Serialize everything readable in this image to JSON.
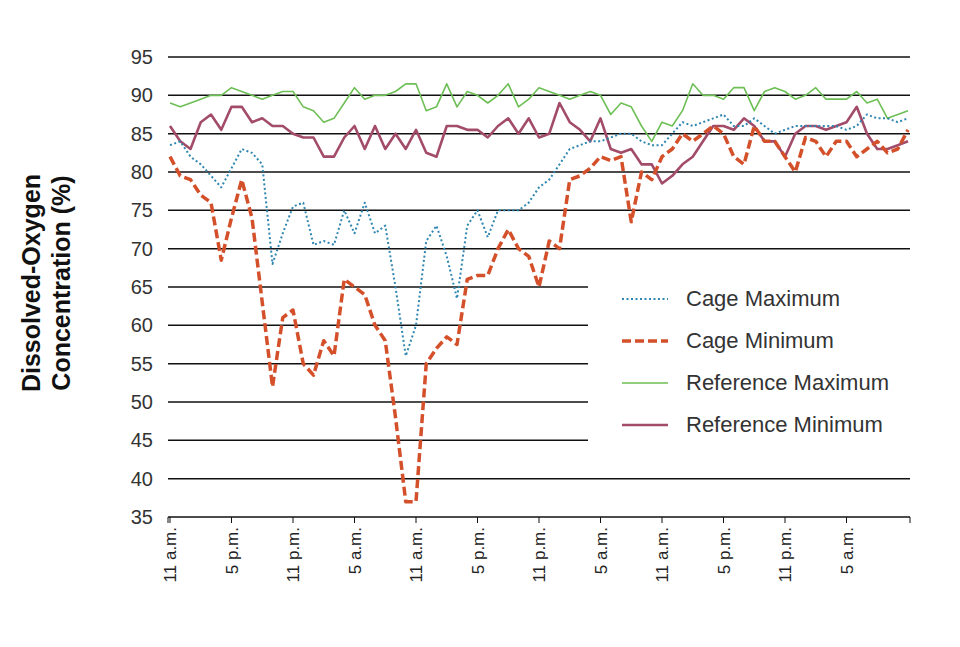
{
  "chart_data": {
    "type": "line",
    "y_label": "Dissolved-Oxygen Concentration (%)",
    "categories": [
      "11 a.m.",
      null,
      null,
      null,
      null,
      null,
      "5 p.m.",
      null,
      null,
      null,
      null,
      null,
      "11 p.m.",
      null,
      null,
      null,
      null,
      null,
      "5 a.m.",
      null,
      null,
      null,
      null,
      null,
      "11 a.m.",
      null,
      null,
      null,
      null,
      null,
      "5 p.m.",
      null,
      null,
      null,
      null,
      null,
      "11 p.m.",
      null,
      null,
      null,
      null,
      null,
      "5 a.m.",
      null,
      null,
      null,
      null,
      null,
      "11 a.m.",
      null,
      null,
      null,
      null,
      null,
      "5 p.m.",
      null,
      null,
      null,
      null,
      null,
      "11 p.m.",
      null,
      null,
      null,
      null,
      null,
      "5 a.m.",
      null,
      null,
      null,
      null,
      null,
      null
    ],
    "series": [
      {
        "name": "Cage Maximum",
        "color": "#2f86b0",
        "line_style": "dotted",
        "values": [
          83.5,
          84,
          82,
          81,
          79.5,
          78,
          80.5,
          83,
          82.5,
          81,
          68,
          72,
          75.5,
          76,
          70.5,
          71,
          70.5,
          75,
          72,
          76,
          72,
          73,
          65,
          56,
          60,
          71,
          73,
          69,
          63.5,
          73,
          75,
          71.5,
          75,
          75,
          75,
          76,
          78,
          79,
          81,
          83,
          83.5,
          84,
          84,
          84.5,
          85,
          85,
          84,
          83.5,
          83.5,
          85,
          86.5,
          86,
          86.5,
          87,
          87.5,
          86,
          86,
          87,
          86,
          85,
          85.5,
          86,
          86,
          86,
          86,
          86,
          85.5,
          86,
          87.5,
          87,
          87,
          86.5,
          87
        ]
      },
      {
        "name": "Cage Minimum",
        "color": "#d4502a",
        "line_style": "dashed",
        "values": [
          82,
          79.5,
          79,
          77,
          76,
          68.5,
          74,
          79,
          74,
          63,
          52,
          61,
          62,
          55,
          53.5,
          58,
          56,
          66,
          65,
          64,
          60,
          58,
          48,
          37,
          37,
          55,
          57,
          58.5,
          57.5,
          66,
          66.5,
          66.5,
          70,
          72.5,
          70,
          69,
          65,
          71,
          70,
          79,
          79.5,
          80.5,
          82,
          81.5,
          82,
          73.5,
          80,
          79,
          82,
          83,
          85,
          84,
          85,
          86,
          85,
          82,
          81,
          86,
          84,
          84,
          82,
          80,
          84.5,
          84,
          82,
          84,
          84,
          82,
          83,
          84,
          82.5,
          83,
          85.5
        ]
      },
      {
        "name": "Reference Maximum",
        "color": "#6dbf55",
        "line_style": "solid",
        "values": [
          89,
          88.5,
          89,
          89.5,
          90,
          90,
          91,
          90.5,
          90,
          89.5,
          90,
          90.5,
          90.5,
          88.5,
          88,
          86.5,
          87,
          89,
          91,
          89.5,
          90,
          90,
          90.5,
          91.5,
          91.5,
          88,
          88.5,
          91.5,
          88.5,
          90.5,
          90,
          89,
          90,
          91.5,
          88.5,
          89.5,
          91,
          90.5,
          90,
          89.5,
          90,
          90.5,
          90,
          87.5,
          89,
          88.5,
          86,
          84,
          86.5,
          86,
          88,
          91.5,
          90,
          90,
          89.5,
          91,
          91,
          88,
          90.5,
          91,
          90.5,
          89.5,
          90,
          91,
          89.5,
          89.5,
          89.5,
          90.5,
          89,
          89.5,
          87,
          87.5,
          88
        ]
      },
      {
        "name": "Reference Minimum",
        "color": "#a24c6a",
        "line_style": "solid",
        "values": [
          86,
          84,
          83,
          86.5,
          87.5,
          85.5,
          88.5,
          88.5,
          86.5,
          87,
          86,
          86,
          85,
          84.5,
          84.5,
          82,
          82,
          84.5,
          86,
          83,
          86,
          83,
          85,
          83,
          85.5,
          82.5,
          82,
          86,
          86,
          85.5,
          85.5,
          84.5,
          86,
          87,
          85,
          87,
          84.5,
          85,
          89,
          86.5,
          85.5,
          84,
          87,
          83,
          82.5,
          83,
          81,
          81,
          78.5,
          79.5,
          81,
          82,
          84,
          86,
          86,
          85.5,
          87,
          86,
          84,
          84,
          82,
          85,
          86,
          86,
          85.5,
          86,
          86.5,
          88.5,
          85,
          83,
          83,
          83.5,
          84
        ]
      }
    ],
    "ylim": [
      35,
      95
    ],
    "yticks": [
      35,
      40,
      45,
      50,
      55,
      60,
      65,
      70,
      75,
      80,
      85,
      90,
      95
    ],
    "grid": true,
    "legend": "right"
  }
}
